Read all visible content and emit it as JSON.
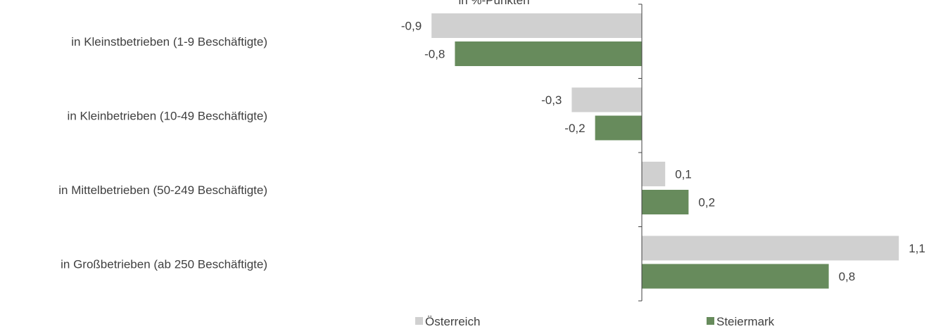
{
  "chart_data": {
    "type": "bar",
    "orientation": "horizontal",
    "title": "",
    "subtitle": "in %-Punkten",
    "categories": [
      "in Kleinstbetrieben (1-9 Beschäftigte)",
      "in Kleinbetrieben (10-49 Beschäftigte)",
      "in Mittelbetrieben (50-249 Beschäftigte)",
      "in Großbetrieben (ab 250 Beschäftigte)"
    ],
    "series": [
      {
        "name": "Österreich",
        "values": [
          -0.9,
          -0.3,
          0.1,
          1.1
        ],
        "labels": [
          "-0,9",
          "-0,3",
          "0,1",
          "1,1"
        ],
        "color": "#d0d0d0"
      },
      {
        "name": "Steiermark",
        "values": [
          -0.8,
          -0.2,
          0.2,
          0.8
        ],
        "labels": [
          "-0,8",
          "-0,2",
          "0,2",
          "0,8"
        ],
        "color": "#678b5c"
      }
    ],
    "xlim": [
      -0.9,
      1.1
    ],
    "grid": false,
    "legend": "bottom"
  }
}
